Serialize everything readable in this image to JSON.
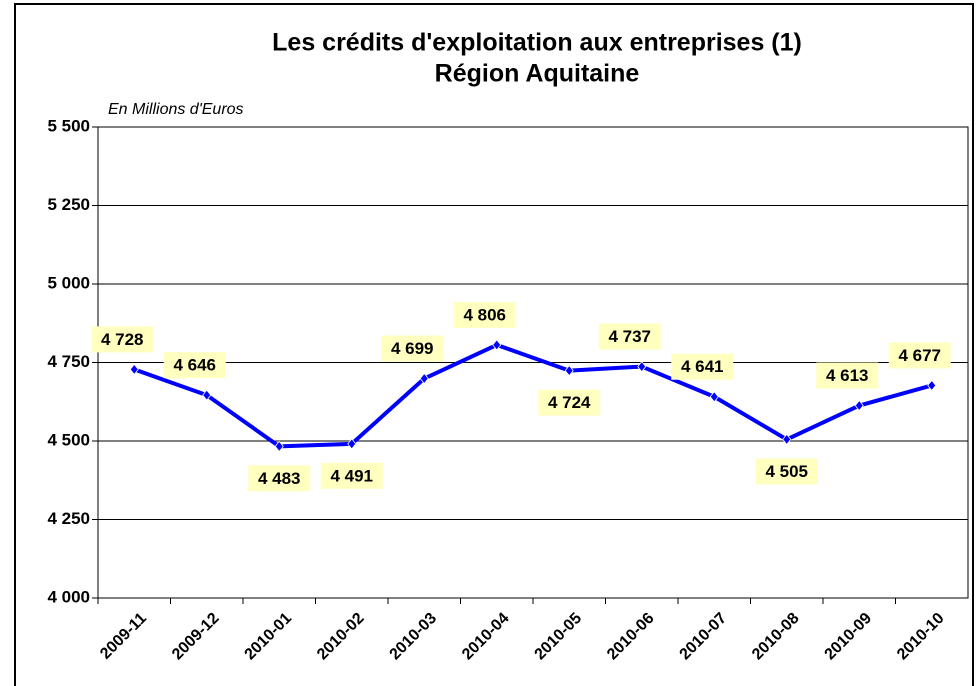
{
  "chart_data": {
    "type": "line",
    "title": "Les crédits d'exploitation aux entreprises (1)",
    "subtitle": "Région Aquitaine",
    "y_label": "En Millions d'Euros",
    "categories": [
      "2009-11",
      "2009-12",
      "2010-01",
      "2010-02",
      "2010-03",
      "2010-04",
      "2010-05",
      "2010-06",
      "2010-07",
      "2010-08",
      "2010-09",
      "2010-10"
    ],
    "series": [
      {
        "color": "#0000ff",
        "values": [
          4728,
          4646,
          4483,
          4491,
          4699,
          4806,
          4724,
          4737,
          4641,
          4505,
          4613,
          4677
        ],
        "value_labels": [
          "4 728",
          "4 646",
          "4 483",
          "4 491",
          "4 699",
          "4 806",
          "4 724",
          "4 737",
          "4 641",
          "4 505",
          "4 613",
          "4 677"
        ]
      }
    ],
    "ylim": [
      4000,
      5500
    ],
    "yticks": [
      {
        "value": 4000,
        "label": "4 000"
      },
      {
        "value": 4250,
        "label": "4 250"
      },
      {
        "value": 4500,
        "label": "4 500"
      },
      {
        "value": 4750,
        "label": "4 750"
      },
      {
        "value": 5000,
        "label": "5 000"
      },
      {
        "value": 5250,
        "label": "5 250"
      },
      {
        "value": 5500,
        "label": "5 500"
      }
    ],
    "grid": true
  }
}
